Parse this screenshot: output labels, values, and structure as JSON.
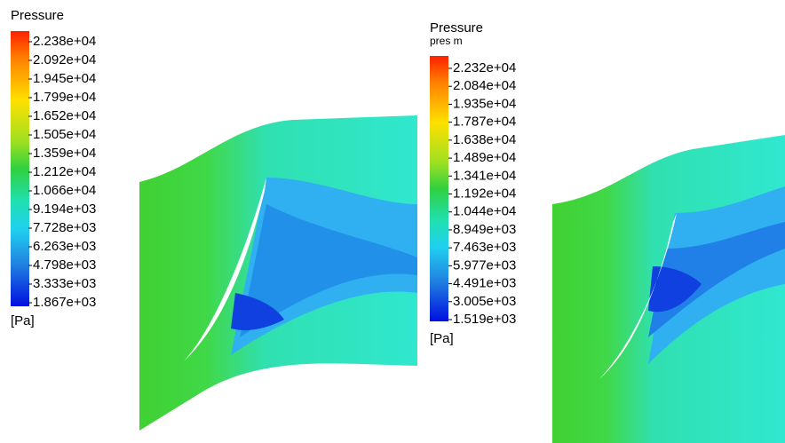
{
  "panels": [
    {
      "legend": {
        "title": "Pressure",
        "labels": [
          "2.238e+04",
          "2.092e+04",
          "1.945e+04",
          "1.799e+04",
          "1.652e+04",
          "1.505e+04",
          "1.359e+04",
          "1.212e+04",
          "1.066e+04",
          "9.194e+03",
          "7.728e+03",
          "6.263e+03",
          "4.798e+03",
          "3.333e+03",
          "1.867e+03"
        ],
        "unit": "[Pa]"
      }
    },
    {
      "legend": {
        "title": "Pressure",
        "subtitle": "pres m",
        "labels": [
          "2.232e+04",
          "2.084e+04",
          "1.935e+04",
          "1.787e+04",
          "1.638e+04",
          "1.489e+04",
          "1.341e+04",
          "1.192e+04",
          "1.044e+04",
          "8.949e+03",
          "7.463e+03",
          "5.977e+03",
          "4.491e+03",
          "3.005e+03",
          "1.519e+03"
        ],
        "unit": "[Pa]"
      }
    }
  ]
}
